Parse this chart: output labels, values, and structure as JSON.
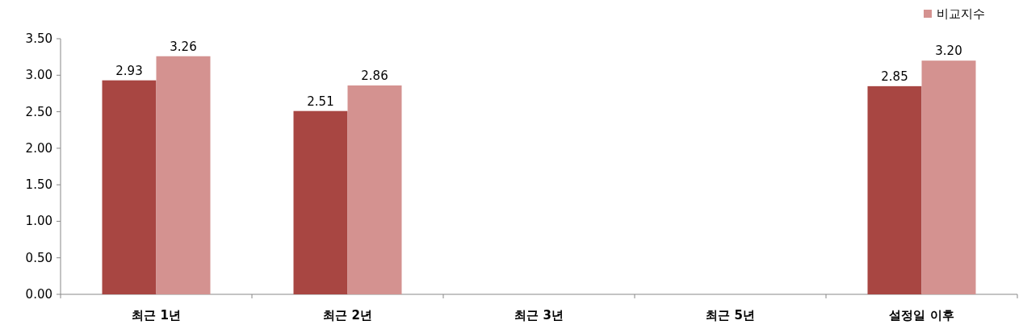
{
  "chart_data": {
    "type": "bar",
    "categories": [
      "최근 1년",
      "최근 2년",
      "최근 3년",
      "최근 5년",
      "설정일 이후"
    ],
    "series": [
      {
        "color": "#a84642",
        "values": [
          2.93,
          2.51,
          null,
          null,
          2.85
        ],
        "value_labels": [
          "2.93",
          "2.51",
          null,
          null,
          "2.85"
        ]
      },
      {
        "name": "비교지수",
        "color": "#d49290",
        "values": [
          3.26,
          2.86,
          null,
          null,
          3.2
        ],
        "value_labels": [
          "3.26",
          "2.86",
          null,
          null,
          "3.20"
        ]
      }
    ],
    "ylim": [
      0,
      3.5
    ],
    "yticks": [
      {
        "value": 0,
        "label": "0.00"
      },
      {
        "value": 0.5,
        "label": "0.50"
      },
      {
        "value": 1,
        "label": "1.00"
      },
      {
        "value": 1.5,
        "label": "1.50"
      },
      {
        "value": 2,
        "label": "2.00"
      },
      {
        "value": 2.5,
        "label": "2.50"
      },
      {
        "value": 3,
        "label": "3.00"
      },
      {
        "value": 3.5,
        "label": "3.50"
      }
    ],
    "grid": false,
    "legend": "top right"
  }
}
